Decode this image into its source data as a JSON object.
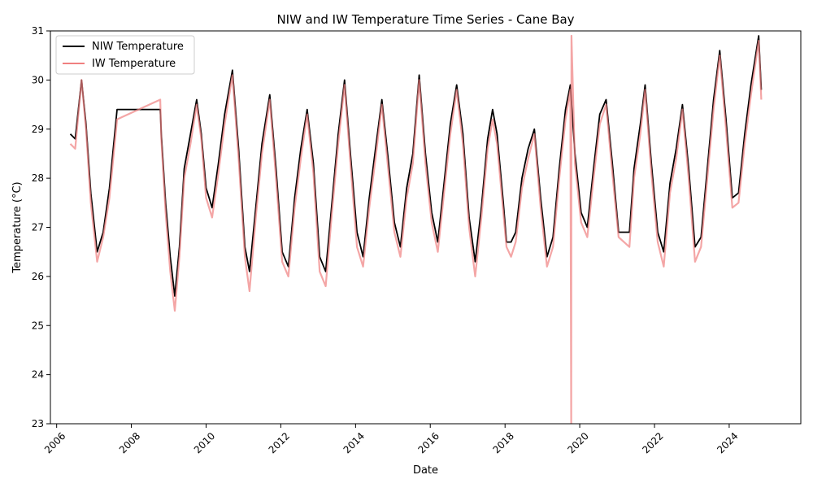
{
  "chart_data": {
    "type": "line",
    "title": "NIW and IW Temperature Time Series - Cane Bay",
    "xlabel": "Date",
    "ylabel": "Temperature (°C)",
    "xlim": [
      "2005-11-01",
      "2025-12-01"
    ],
    "ylim": [
      23,
      31
    ],
    "x_ticks": [
      "2006",
      "2008",
      "2010",
      "2012",
      "2014",
      "2016",
      "2018",
      "2020",
      "2022",
      "2024"
    ],
    "y_ticks": [
      "23",
      "24",
      "25",
      "26",
      "27",
      "28",
      "29",
      "30",
      "31"
    ],
    "grid": false,
    "legend": "top-left",
    "series": [
      {
        "name": "NIW Temperature",
        "color": "#000000",
        "points": [
          [
            "2006-05-15",
            28.9
          ],
          [
            "2006-07-01",
            28.8
          ],
          [
            "2006-09-01",
            30.0
          ],
          [
            "2006-10-15",
            29.1
          ],
          [
            "2006-12-01",
            27.7
          ],
          [
            "2007-02-01",
            26.5
          ],
          [
            "2007-04-01",
            26.9
          ],
          [
            "2007-06-01",
            27.8
          ],
          [
            "2007-08-15",
            29.4
          ],
          [
            "2008-10-10",
            29.4
          ],
          [
            "2008-10-20",
            28.9
          ],
          [
            "2008-12-01",
            27.5
          ],
          [
            "2009-01-15",
            26.4
          ],
          [
            "2009-03-01",
            25.6
          ],
          [
            "2009-04-15",
            26.6
          ],
          [
            "2009-06-01",
            28.2
          ],
          [
            "2009-08-01",
            28.9
          ],
          [
            "2009-10-01",
            29.6
          ],
          [
            "2009-11-15",
            28.9
          ],
          [
            "2010-01-01",
            27.8
          ],
          [
            "2010-03-01",
            27.4
          ],
          [
            "2010-05-01",
            28.3
          ],
          [
            "2010-07-01",
            29.3
          ],
          [
            "2010-09-15",
            30.2
          ],
          [
            "2010-11-15",
            28.6
          ],
          [
            "2011-01-15",
            26.6
          ],
          [
            "2011-03-01",
            26.1
          ],
          [
            "2011-05-01",
            27.4
          ],
          [
            "2011-07-01",
            28.7
          ],
          [
            "2011-09-15",
            29.7
          ],
          [
            "2011-11-15",
            28.2
          ],
          [
            "2012-01-15",
            26.5
          ],
          [
            "2012-03-15",
            26.2
          ],
          [
            "2012-05-15",
            27.6
          ],
          [
            "2012-07-15",
            28.6
          ],
          [
            "2012-09-15",
            29.4
          ],
          [
            "2012-11-15",
            28.3
          ],
          [
            "2013-01-15",
            26.4
          ],
          [
            "2013-03-15",
            26.1
          ],
          [
            "2013-05-15",
            27.5
          ],
          [
            "2013-07-15",
            28.9
          ],
          [
            "2013-09-15",
            30.0
          ],
          [
            "2013-11-15",
            28.4
          ],
          [
            "2014-01-15",
            26.9
          ],
          [
            "2014-03-15",
            26.4
          ],
          [
            "2014-05-15",
            27.6
          ],
          [
            "2014-07-15",
            28.6
          ],
          [
            "2014-09-15",
            29.6
          ],
          [
            "2014-11-15",
            28.4
          ],
          [
            "2015-01-15",
            27.1
          ],
          [
            "2015-03-15",
            26.6
          ],
          [
            "2015-05-15",
            27.8
          ],
          [
            "2015-07-15",
            28.5
          ],
          [
            "2015-09-15",
            30.1
          ],
          [
            "2015-11-15",
            28.5
          ],
          [
            "2016-01-15",
            27.3
          ],
          [
            "2016-03-15",
            26.7
          ],
          [
            "2016-05-15",
            27.9
          ],
          [
            "2016-07-15",
            29.1
          ],
          [
            "2016-09-15",
            29.9
          ],
          [
            "2016-11-15",
            28.9
          ],
          [
            "2017-01-15",
            27.2
          ],
          [
            "2017-03-15",
            26.3
          ],
          [
            "2017-05-15",
            27.4
          ],
          [
            "2017-07-15",
            28.8
          ],
          [
            "2017-09-01",
            29.4
          ],
          [
            "2017-10-15",
            28.9
          ],
          [
            "2017-12-15",
            27.5
          ],
          [
            "2018-01-15",
            26.7
          ],
          [
            "2018-03-01",
            26.7
          ],
          [
            "2018-04-15",
            26.9
          ],
          [
            "2018-06-15",
            28.0
          ],
          [
            "2018-08-15",
            28.6
          ],
          [
            "2018-10-15",
            29.0
          ],
          [
            "2018-12-15",
            27.6
          ],
          [
            "2019-02-15",
            26.4
          ],
          [
            "2019-04-15",
            26.8
          ],
          [
            "2019-06-15",
            28.2
          ],
          [
            "2019-08-15",
            29.4
          ],
          [
            "2019-10-01",
            29.9
          ],
          [
            "2019-11-15",
            28.5
          ],
          [
            "2020-01-15",
            27.3
          ],
          [
            "2020-03-15",
            27.0
          ],
          [
            "2020-05-15",
            28.2
          ],
          [
            "2020-07-15",
            29.3
          ],
          [
            "2020-09-15",
            29.6
          ],
          [
            "2020-11-15",
            28.3
          ],
          [
            "2021-01-15",
            26.9
          ],
          [
            "2021-05-01",
            26.9
          ],
          [
            "2021-06-15",
            28.2
          ],
          [
            "2021-08-15",
            29.1
          ],
          [
            "2021-10-01",
            29.9
          ],
          [
            "2021-12-01",
            28.3
          ],
          [
            "2022-02-01",
            26.9
          ],
          [
            "2022-04-01",
            26.5
          ],
          [
            "2022-06-01",
            27.9
          ],
          [
            "2022-08-01",
            28.6
          ],
          [
            "2022-10-01",
            29.5
          ],
          [
            "2022-12-01",
            28.2
          ],
          [
            "2023-02-01",
            26.6
          ],
          [
            "2023-04-01",
            26.8
          ],
          [
            "2023-06-01",
            28.2
          ],
          [
            "2023-08-01",
            29.6
          ],
          [
            "2023-10-01",
            30.6
          ],
          [
            "2023-12-01",
            29.2
          ],
          [
            "2024-02-01",
            27.6
          ],
          [
            "2024-04-01",
            27.7
          ],
          [
            "2024-06-01",
            28.9
          ],
          [
            "2024-08-01",
            29.9
          ],
          [
            "2024-10-15",
            30.9
          ],
          [
            "2024-11-10",
            29.8
          ]
        ]
      },
      {
        "name": "IW Temperature",
        "color": "#f08080",
        "points": [
          [
            "2006-05-15",
            28.7
          ],
          [
            "2006-07-01",
            28.6
          ],
          [
            "2006-09-01",
            30.0
          ],
          [
            "2006-10-15",
            29.0
          ],
          [
            "2006-12-01",
            27.5
          ],
          [
            "2007-02-01",
            26.3
          ],
          [
            "2007-04-01",
            26.8
          ],
          [
            "2007-06-01",
            27.6
          ],
          [
            "2007-08-15",
            29.2
          ],
          [
            "2008-10-10",
            29.6
          ],
          [
            "2008-10-20",
            28.8
          ],
          [
            "2008-12-01",
            27.3
          ],
          [
            "2009-01-15",
            26.1
          ],
          [
            "2009-03-01",
            25.3
          ],
          [
            "2009-04-15",
            26.4
          ],
          [
            "2009-06-01",
            28.0
          ],
          [
            "2009-08-01",
            28.7
          ],
          [
            "2009-10-01",
            29.5
          ],
          [
            "2009-11-15",
            28.8
          ],
          [
            "2010-01-01",
            27.6
          ],
          [
            "2010-03-01",
            27.2
          ],
          [
            "2010-05-01",
            28.1
          ],
          [
            "2010-07-01",
            29.1
          ],
          [
            "2010-09-15",
            30.1
          ],
          [
            "2010-11-15",
            28.4
          ],
          [
            "2011-01-15",
            26.4
          ],
          [
            "2011-03-01",
            25.7
          ],
          [
            "2011-05-01",
            27.2
          ],
          [
            "2011-07-01",
            28.5
          ],
          [
            "2011-09-15",
            29.6
          ],
          [
            "2011-11-15",
            28.0
          ],
          [
            "2012-01-15",
            26.3
          ],
          [
            "2012-03-15",
            26.0
          ],
          [
            "2012-05-15",
            27.4
          ],
          [
            "2012-07-15",
            28.4
          ],
          [
            "2012-09-15",
            29.3
          ],
          [
            "2012-11-15",
            28.1
          ],
          [
            "2013-01-15",
            26.1
          ],
          [
            "2013-03-15",
            25.8
          ],
          [
            "2013-05-15",
            27.3
          ],
          [
            "2013-07-15",
            28.7
          ],
          [
            "2013-09-15",
            29.9
          ],
          [
            "2013-11-15",
            28.2
          ],
          [
            "2014-01-15",
            26.6
          ],
          [
            "2014-03-15",
            26.2
          ],
          [
            "2014-05-15",
            27.4
          ],
          [
            "2014-07-15",
            28.4
          ],
          [
            "2014-09-15",
            29.5
          ],
          [
            "2014-11-15",
            28.2
          ],
          [
            "2015-01-15",
            26.9
          ],
          [
            "2015-03-15",
            26.4
          ],
          [
            "2015-05-15",
            27.6
          ],
          [
            "2015-07-15",
            28.3
          ],
          [
            "2015-09-15",
            30.0
          ],
          [
            "2015-11-15",
            28.3
          ],
          [
            "2016-01-15",
            27.1
          ],
          [
            "2016-03-15",
            26.5
          ],
          [
            "2016-05-15",
            27.7
          ],
          [
            "2016-07-15",
            28.9
          ],
          [
            "2016-09-15",
            29.8
          ],
          [
            "2016-11-15",
            28.7
          ],
          [
            "2017-01-15",
            27.0
          ],
          [
            "2017-03-15",
            26.0
          ],
          [
            "2017-05-15",
            27.2
          ],
          [
            "2017-07-15",
            28.6
          ],
          [
            "2017-09-01",
            29.2
          ],
          [
            "2017-10-15",
            28.7
          ],
          [
            "2017-12-15",
            27.3
          ],
          [
            "2018-01-15",
            26.6
          ],
          [
            "2018-03-01",
            26.4
          ],
          [
            "2018-04-15",
            26.7
          ],
          [
            "2018-06-15",
            27.8
          ],
          [
            "2018-08-15",
            28.4
          ],
          [
            "2018-10-15",
            28.9
          ],
          [
            "2018-12-15",
            27.4
          ],
          [
            "2019-02-15",
            26.2
          ],
          [
            "2019-04-15",
            26.6
          ],
          [
            "2019-06-15",
            28.0
          ],
          [
            "2019-08-15",
            29.2
          ],
          [
            "2019-10-01",
            29.8
          ],
          [
            "2019-10-10",
            23.0
          ],
          [
            "2019-10-12",
            30.9
          ],
          [
            "2019-11-15",
            28.3
          ],
          [
            "2020-01-15",
            27.1
          ],
          [
            "2020-03-15",
            26.8
          ],
          [
            "2020-05-15",
            28.0
          ],
          [
            "2020-07-15",
            29.1
          ],
          [
            "2020-09-15",
            29.5
          ],
          [
            "2020-11-15",
            28.1
          ],
          [
            "2021-01-15",
            26.8
          ],
          [
            "2021-05-01",
            26.6
          ],
          [
            "2021-06-15",
            28.0
          ],
          [
            "2021-08-15",
            28.9
          ],
          [
            "2021-10-01",
            29.8
          ],
          [
            "2021-12-01",
            28.1
          ],
          [
            "2022-02-01",
            26.7
          ],
          [
            "2022-04-01",
            26.2
          ],
          [
            "2022-06-01",
            27.7
          ],
          [
            "2022-08-01",
            28.4
          ],
          [
            "2022-10-01",
            29.4
          ],
          [
            "2022-12-01",
            28.0
          ],
          [
            "2023-02-01",
            26.3
          ],
          [
            "2023-04-01",
            26.6
          ],
          [
            "2023-06-01",
            28.0
          ],
          [
            "2023-08-01",
            29.4
          ],
          [
            "2023-10-01",
            30.5
          ],
          [
            "2023-12-01",
            29.0
          ],
          [
            "2024-02-01",
            27.4
          ],
          [
            "2024-04-01",
            27.5
          ],
          [
            "2024-06-01",
            28.7
          ],
          [
            "2024-08-01",
            29.7
          ],
          [
            "2024-10-15",
            30.8
          ],
          [
            "2024-11-10",
            29.6
          ]
        ]
      }
    ]
  }
}
